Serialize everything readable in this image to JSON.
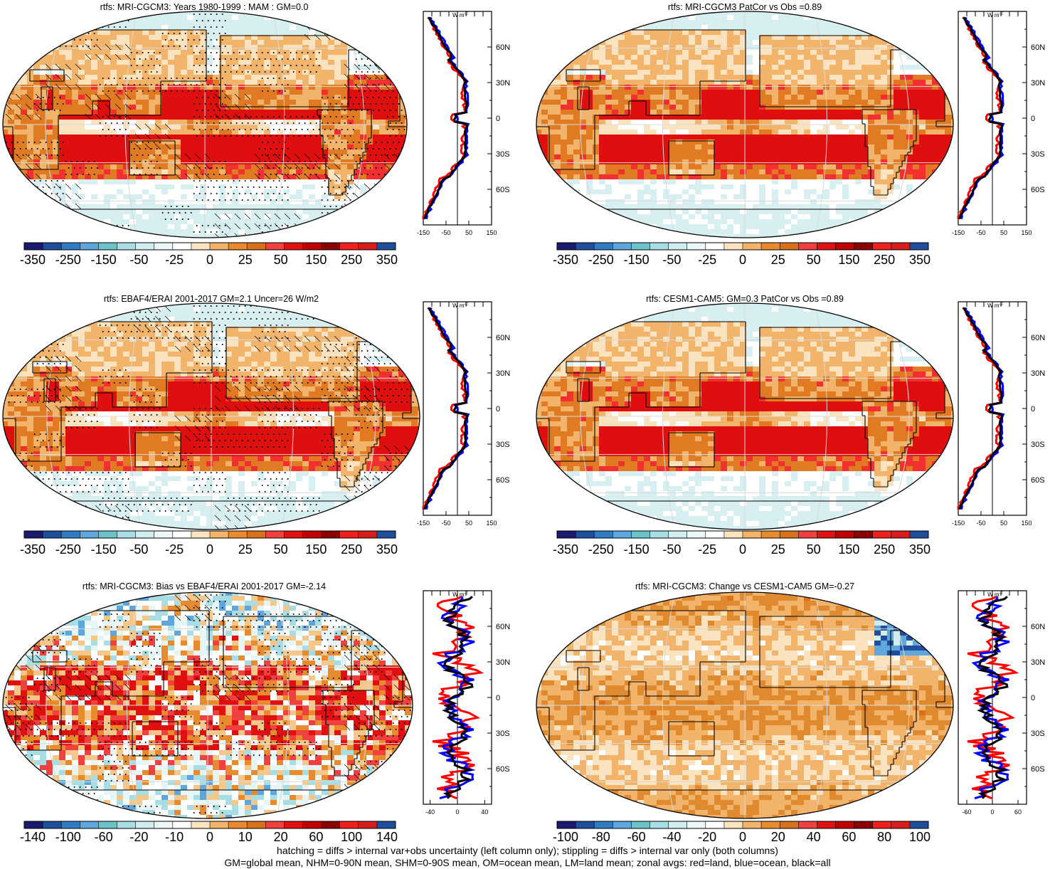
{
  "panels": [
    {
      "title": "rtfs: MRI-CGCM3: Years 1980-1999 : MAM : GM=0.0",
      "scale": "main",
      "overlay": "both",
      "pattern": "mean",
      "zonal": {
        "x_ticks": [
          "-150",
          "-50",
          "50",
          "150"
        ],
        "x_vals": [
          -150,
          -50,
          50,
          150
        ],
        "xlim": [
          -150,
          150
        ],
        "unit": "W m",
        "unit_exp": "-2",
        "lat_labels": [
          "60N",
          "30N",
          "0",
          "30S",
          "60S"
        ]
      }
    },
    {
      "title": "rtfs: MRI-CGCM3 PatCor vs Obs =0.89",
      "scale": "main",
      "overlay": "none",
      "pattern": "mean",
      "zonal": {
        "x_ticks": [
          "-150",
          "-50",
          "50",
          "150"
        ],
        "x_vals": [
          -150,
          -50,
          50,
          150
        ],
        "xlim": [
          -150,
          150
        ],
        "unit": "W m",
        "unit_exp": "-2",
        "lat_labels": [
          "60N",
          "30N",
          "0",
          "30S",
          "60S"
        ]
      }
    },
    {
      "title": "rtfs: EBAF4/ERAI 2001-2017 GM=2.1 Uncer=26 W/m2",
      "scale": "main",
      "overlay": "both",
      "pattern": "mean",
      "zonal": {
        "x_ticks": [
          "-150",
          "-50",
          "50",
          "150"
        ],
        "x_vals": [
          -150,
          -50,
          50,
          150
        ],
        "xlim": [
          -150,
          150
        ],
        "unit": "W m",
        "unit_exp": "-2",
        "lat_labels": [
          "60N",
          "30N",
          "0",
          "30S",
          "60S"
        ]
      }
    },
    {
      "title": "rtfs: CESM1-CAM5: GM=0.3 PatCor vs Obs =0.89",
      "scale": "main",
      "overlay": "none",
      "pattern": "mean",
      "zonal": {
        "x_ticks": [
          "-150",
          "-50",
          "50",
          "150"
        ],
        "x_vals": [
          -150,
          -50,
          50,
          150
        ],
        "xlim": [
          -150,
          150
        ],
        "unit": "W m",
        "unit_exp": "-2",
        "lat_labels": [
          "60N",
          "30N",
          "0",
          "30S",
          "60S"
        ]
      }
    },
    {
      "title": "rtfs: MRI-CGCM3: Bias vs EBAF4/ERAI 2001-2017 GM=-2.14",
      "scale": "bias",
      "overlay": "both",
      "pattern": "bias",
      "zonal": {
        "x_ticks": [
          "-40",
          "0",
          "40"
        ],
        "x_vals": [
          -40,
          0,
          40
        ],
        "xlim": [
          -50,
          50
        ],
        "unit": "W m",
        "unit_exp": "-2",
        "lat_labels": [
          "60N",
          "30N",
          "0",
          "30S",
          "60S"
        ]
      }
    },
    {
      "title": "rtfs: MRI-CGCM3: Change vs CESM1-CAM5 GM=-0.27",
      "scale": "change",
      "overlay": "none",
      "pattern": "change",
      "zonal": {
        "x_ticks": [
          "-60",
          "0",
          "60"
        ],
        "x_vals": [
          -60,
          0,
          60
        ],
        "xlim": [
          -80,
          80
        ],
        "unit": "W m",
        "unit_exp": "-2",
        "lat_labels": [
          "60N",
          "30N",
          "0",
          "30S",
          "60S"
        ]
      }
    }
  ],
  "colorbars": {
    "main": {
      "labels": [
        "-350",
        "-250",
        "-150",
        "-50",
        "-25",
        "0",
        "25",
        "50",
        "150",
        "250",
        "350"
      ]
    },
    "bias": {
      "labels": [
        "-140",
        "-100",
        "-60",
        "-20",
        "-10",
        "0",
        "10",
        "20",
        "60",
        "100",
        "140"
      ]
    },
    "change": {
      "labels": [
        "-100",
        "-80",
        "-60",
        "-40",
        "-20",
        "0",
        "20",
        "40",
        "60",
        "80",
        "100"
      ]
    }
  },
  "palette": [
    "#1a1a6e",
    "#1f4e9c",
    "#2f7bc4",
    "#5fa6dc",
    "#6cc3c9",
    "#a8dde3",
    "#d0eef0",
    "#ecf7f8",
    "#ffffff",
    "#fbe3c0",
    "#f2b36a",
    "#e88b2e",
    "#d9701c",
    "#f04040",
    "#e01010",
    "#c00000",
    "#8b0000",
    "#f21f1f",
    "#d81c1c",
    "#1f4e9c"
  ],
  "zonal_colors": {
    "land": "#ff0000",
    "ocean": "#0000ff",
    "all": "#000000"
  },
  "chart_data": [
    {
      "type": "heatmap",
      "title": "rtfs: MRI-CGCM3: Years 1980-1999 : MAM : GM=0.0"
    },
    {
      "type": "heatmap",
      "title": "rtfs: MRI-CGCM3 PatCor vs Obs =0.89"
    },
    {
      "type": "heatmap",
      "title": "rtfs: EBAF4/ERAI 2001-2017 GM=2.1 Uncer=26 W/m2"
    },
    {
      "type": "heatmap",
      "title": "rtfs: CESM1-CAM5: GM=0.3 PatCor vs Obs =0.89"
    },
    {
      "type": "heatmap",
      "title": "rtfs: MRI-CGCM3: Bias vs EBAF4/ERAI 2001-2017 GM=-2.14"
    },
    {
      "type": "heatmap",
      "title": "rtfs: MRI-CGCM3: Change vs CESM1-CAM5 GM=-0.27"
    }
  ],
  "footer": {
    "line1": "hatching = diffs > internal var+obs uncertainty (left column only); stippling = diffs > internal var only (both columns)",
    "line2": "GM=global mean, NHM=0-90N mean, SHM=0-90S mean, OM=ocean mean, LM=land mean; zonal avgs: red=land, blue=ocean, black=all"
  }
}
